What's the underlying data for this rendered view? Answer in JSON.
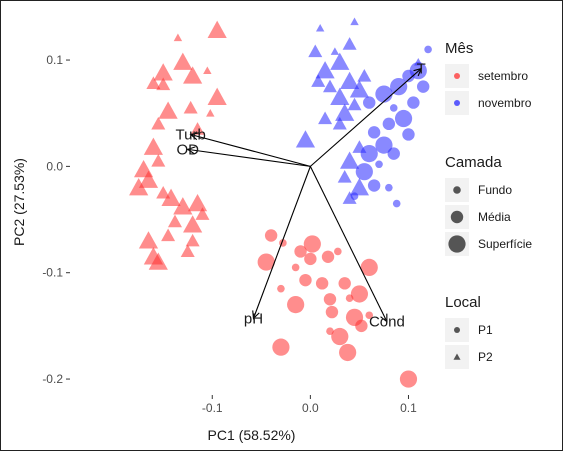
{
  "chart_data": {
    "type": "scatter",
    "xlabel": "PC1 (58.52%)",
    "ylabel": "PC2 (27.53%)",
    "xlim": [
      -0.245,
      0.125
    ],
    "ylim": [
      -0.215,
      0.148
    ],
    "x_ticks": [
      {
        "value": -0.1,
        "label": "-0.1"
      },
      {
        "value": 0.0,
        "label": "0.0"
      },
      {
        "value": 0.1,
        "label": "0.1"
      }
    ],
    "y_ticks": [
      {
        "value": 0.1,
        "label": "0.1"
      },
      {
        "value": 0.0,
        "label": "0.0"
      },
      {
        "value": -0.1,
        "label": "-0.1"
      },
      {
        "value": -0.2,
        "label": "-0.2"
      }
    ],
    "grid": false,
    "panel_background": "#ffffff",
    "legends": [
      {
        "title": "Mês",
        "kind": "color",
        "items": [
          {
            "label": "setembro",
            "color": "#ff3030"
          },
          {
            "label": "novembro",
            "color": "#2828ff"
          }
        ]
      },
      {
        "title": "Camada",
        "kind": "size",
        "items": [
          {
            "label": "Fundo",
            "size": 1
          },
          {
            "label": "Média",
            "size": 2
          },
          {
            "label": "Superfície",
            "size": 3
          }
        ]
      },
      {
        "title": "Local",
        "kind": "shape",
        "items": [
          {
            "label": "P1",
            "shape": "circle"
          },
          {
            "label": "P2",
            "shape": "triangle"
          }
        ]
      }
    ],
    "legend_position": "right",
    "origin": [
      0.0,
      0.0
    ],
    "vectors": [
      {
        "label": "Turb",
        "x": -0.122,
        "y": 0.03
      },
      {
        "label": "OD",
        "x": -0.125,
        "y": 0.016
      },
      {
        "label": "T",
        "x": 0.113,
        "y": 0.092
      },
      {
        "label": "pH",
        "x": -0.058,
        "y": -0.143
      },
      {
        "label": "Cond",
        "x": 0.078,
        "y": -0.146
      }
    ],
    "series": [
      {
        "mes": "setembro",
        "local": "P2",
        "color": "#ff3030",
        "points": [
          {
            "x": -0.095,
            "y": 0.128,
            "camada": 3
          },
          {
            "x": -0.135,
            "y": 0.121,
            "camada": 1
          },
          {
            "x": -0.13,
            "y": 0.098,
            "camada": 3
          },
          {
            "x": -0.15,
            "y": 0.088,
            "camada": 3
          },
          {
            "x": -0.16,
            "y": 0.078,
            "camada": 2
          },
          {
            "x": -0.15,
            "y": 0.077,
            "camada": 2
          },
          {
            "x": -0.12,
            "y": 0.085,
            "camada": 3
          },
          {
            "x": -0.105,
            "y": 0.09,
            "camada": 1
          },
          {
            "x": -0.095,
            "y": 0.065,
            "camada": 3
          },
          {
            "x": -0.122,
            "y": 0.055,
            "camada": 2
          },
          {
            "x": -0.102,
            "y": 0.05,
            "camada": 1
          },
          {
            "x": -0.145,
            "y": 0.052,
            "camada": 3
          },
          {
            "x": -0.155,
            "y": 0.04,
            "camada": 2
          },
          {
            "x": -0.115,
            "y": 0.035,
            "camada": 2
          },
          {
            "x": -0.16,
            "y": 0.018,
            "camada": 3
          },
          {
            "x": -0.155,
            "y": 0.005,
            "camada": 2
          },
          {
            "x": -0.17,
            "y": -0.003,
            "camada": 3
          },
          {
            "x": -0.165,
            "y": -0.013,
            "camada": 3
          },
          {
            "x": -0.175,
            "y": -0.02,
            "camada": 3
          },
          {
            "x": -0.15,
            "y": -0.025,
            "camada": 2
          },
          {
            "x": -0.142,
            "y": -0.03,
            "camada": 3
          },
          {
            "x": -0.115,
            "y": -0.035,
            "camada": 3
          },
          {
            "x": -0.13,
            "y": -0.038,
            "camada": 3
          },
          {
            "x": -0.11,
            "y": -0.045,
            "camada": 2
          },
          {
            "x": -0.138,
            "y": -0.052,
            "camada": 2
          },
          {
            "x": -0.12,
            "y": -0.055,
            "camada": 3
          },
          {
            "x": -0.145,
            "y": -0.065,
            "camada": 2
          },
          {
            "x": -0.165,
            "y": -0.07,
            "camada": 3
          },
          {
            "x": -0.12,
            "y": -0.07,
            "camada": 2
          },
          {
            "x": -0.125,
            "y": -0.08,
            "camada": 2
          },
          {
            "x": -0.16,
            "y": -0.085,
            "camada": 3
          },
          {
            "x": -0.155,
            "y": -0.09,
            "camada": 3
          }
        ]
      },
      {
        "mes": "setembro",
        "local": "P1",
        "color": "#ff3030",
        "points": [
          {
            "x": -0.04,
            "y": -0.065,
            "camada": 2
          },
          {
            "x": -0.028,
            "y": -0.072,
            "camada": 1
          },
          {
            "x": -0.01,
            "y": -0.08,
            "camada": 2
          },
          {
            "x": 0.002,
            "y": -0.073,
            "camada": 3
          },
          {
            "x": 0.018,
            "y": -0.085,
            "camada": 2
          },
          {
            "x": -0.045,
            "y": -0.09,
            "camada": 3
          },
          {
            "x": -0.015,
            "y": -0.095,
            "camada": 1
          },
          {
            "x": 0.028,
            "y": -0.08,
            "camada": 1
          },
          {
            "x": -0.005,
            "y": -0.107,
            "camada": 2
          },
          {
            "x": 0.035,
            "y": -0.11,
            "camada": 2
          },
          {
            "x": 0.012,
            "y": -0.11,
            "camada": 2
          },
          {
            "x": 0.06,
            "y": -0.095,
            "camada": 3
          },
          {
            "x": -0.03,
            "y": -0.115,
            "camada": 1
          },
          {
            "x": 0.05,
            "y": -0.12,
            "camada": 3
          },
          {
            "x": 0.02,
            "y": -0.125,
            "camada": 2
          },
          {
            "x": 0.04,
            "y": -0.124,
            "camada": 1
          },
          {
            "x": -0.015,
            "y": -0.13,
            "camada": 3
          },
          {
            "x": 0.022,
            "y": -0.137,
            "camada": 2
          },
          {
            "x": 0.045,
            "y": -0.142,
            "camada": 3
          },
          {
            "x": 0.06,
            "y": -0.14,
            "camada": 1
          },
          {
            "x": 0.052,
            "y": -0.15,
            "camada": 2
          },
          {
            "x": 0.02,
            "y": -0.155,
            "camada": 1
          },
          {
            "x": 0.03,
            "y": -0.16,
            "camada": 3
          },
          {
            "x": -0.03,
            "y": -0.17,
            "camada": 3
          },
          {
            "x": 0.038,
            "y": -0.175,
            "camada": 3
          },
          {
            "x": 0.1,
            "y": -0.2,
            "camada": 3
          },
          {
            "x": 0.0,
            "y": -0.087,
            "camada": 2
          }
        ]
      },
      {
        "mes": "novembro",
        "local": "P2",
        "color": "#2828ff",
        "points": [
          {
            "x": 0.01,
            "y": 0.13,
            "camada": 1
          },
          {
            "x": 0.045,
            "y": 0.136,
            "camada": 1
          },
          {
            "x": 0.04,
            "y": 0.115,
            "camada": 2
          },
          {
            "x": 0.005,
            "y": 0.108,
            "camada": 2
          },
          {
            "x": 0.025,
            "y": 0.108,
            "camada": 1
          },
          {
            "x": 0.015,
            "y": 0.09,
            "camada": 3
          },
          {
            "x": 0.03,
            "y": 0.098,
            "camada": 3
          },
          {
            "x": 0.008,
            "y": 0.08,
            "camada": 2
          },
          {
            "x": 0.02,
            "y": 0.075,
            "camada": 2
          },
          {
            "x": 0.04,
            "y": 0.08,
            "camada": 3
          },
          {
            "x": 0.055,
            "y": 0.085,
            "camada": 2
          },
          {
            "x": 0.05,
            "y": 0.072,
            "camada": 3
          },
          {
            "x": 0.03,
            "y": 0.065,
            "camada": 3
          },
          {
            "x": 0.045,
            "y": 0.058,
            "camada": 2
          },
          {
            "x": 0.035,
            "y": 0.05,
            "camada": 3
          },
          {
            "x": 0.015,
            "y": 0.045,
            "camada": 2
          },
          {
            "x": 0.03,
            "y": 0.04,
            "camada": 2
          },
          {
            "x": -0.005,
            "y": 0.025,
            "camada": 3
          },
          {
            "x": 0.05,
            "y": 0.018,
            "camada": 2
          },
          {
            "x": 0.04,
            "y": 0.005,
            "camada": 3
          },
          {
            "x": 0.035,
            "y": -0.01,
            "camada": 2
          },
          {
            "x": 0.05,
            "y": -0.02,
            "camada": 3
          },
          {
            "x": 0.04,
            "y": -0.03,
            "camada": 2
          },
          {
            "x": 0.11,
            "y": 0.098,
            "camada": 1
          }
        ]
      },
      {
        "mes": "novembro",
        "local": "P1",
        "color": "#2828ff",
        "points": [
          {
            "x": 0.12,
            "y": 0.11,
            "camada": 1
          },
          {
            "x": 0.11,
            "y": 0.09,
            "camada": 3
          },
          {
            "x": 0.1,
            "y": 0.085,
            "camada": 2
          },
          {
            "x": 0.09,
            "y": 0.075,
            "camada": 3
          },
          {
            "x": 0.075,
            "y": 0.068,
            "camada": 3
          },
          {
            "x": 0.06,
            "y": 0.06,
            "camada": 2
          },
          {
            "x": 0.085,
            "y": 0.055,
            "camada": 1
          },
          {
            "x": 0.095,
            "y": 0.045,
            "camada": 3
          },
          {
            "x": 0.08,
            "y": 0.04,
            "camada": 2
          },
          {
            "x": 0.065,
            "y": 0.032,
            "camada": 2
          },
          {
            "x": 0.075,
            "y": 0.02,
            "camada": 3
          },
          {
            "x": 0.06,
            "y": 0.012,
            "camada": 3
          },
          {
            "x": 0.085,
            "y": 0.012,
            "camada": 2
          },
          {
            "x": 0.07,
            "y": 0.002,
            "camada": 1
          },
          {
            "x": 0.055,
            "y": -0.005,
            "camada": 3
          },
          {
            "x": 0.065,
            "y": -0.018,
            "camada": 2
          },
          {
            "x": 0.08,
            "y": -0.02,
            "camada": 1
          },
          {
            "x": 0.045,
            "y": -0.028,
            "camada": 1
          },
          {
            "x": 0.088,
            "y": -0.035,
            "camada": 1
          },
          {
            "x": 0.1,
            "y": 0.03,
            "camada": 2
          },
          {
            "x": 0.105,
            "y": 0.06,
            "camada": 2
          },
          {
            "x": 0.115,
            "y": 0.075,
            "camada": 2
          }
        ]
      }
    ]
  }
}
